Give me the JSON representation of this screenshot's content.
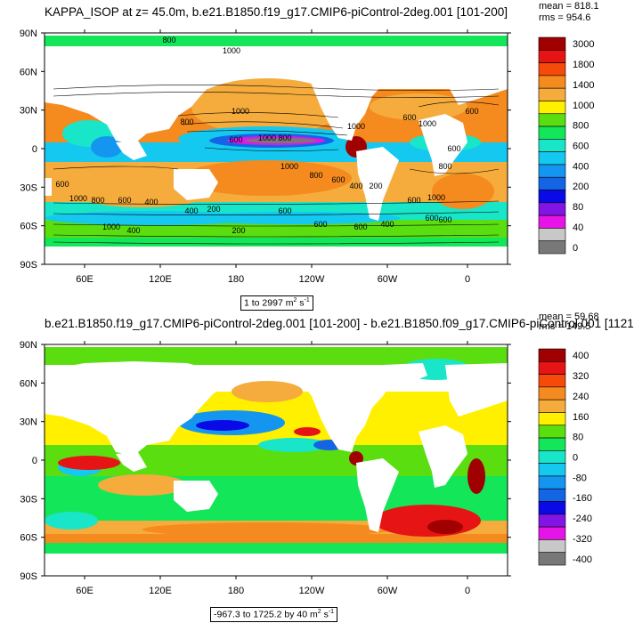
{
  "chart_data": [
    {
      "type": "heatmap",
      "title": "KAPPA_ISOP at z=  45.0m, b.e21.B1850.f19_g17.CMIP6-piControl-2deg.001 [101-200]",
      "stats": {
        "mean": "mean = 818.1",
        "rms": "rms = 954.6"
      },
      "range_label": "1 to 2997 m",
      "range_units": {
        "m_sup": "2",
        "s": " s",
        "s_sup": "-1"
      },
      "x_ticks": [
        "60E",
        "120E",
        "180",
        "120W",
        "60W",
        "0"
      ],
      "y_ticks": [
        "90N",
        "60N",
        "30N",
        "0",
        "30S",
        "60S",
        "90S"
      ],
      "colorbar": {
        "labels": [
          "3000",
          "1800",
          "1400",
          "1000",
          "800",
          "600",
          "400",
          "200",
          "80",
          "40",
          "0"
        ],
        "colors": [
          "#a00000",
          "#e61414",
          "#f54a0a",
          "#f58a1e",
          "#f5ac3c",
          "#fff000",
          "#5ade10",
          "#14e65a",
          "#19e6c8",
          "#14c8f0",
          "#1496f0",
          "#1464e6",
          "#0a0ae6",
          "#8214e6",
          "#e614e6",
          "#c8c8c8",
          "#787878"
        ]
      },
      "contour_labels": [
        "800",
        "1000",
        "1000",
        "1000",
        "600",
        "1000",
        "600",
        "800",
        "600",
        "1000",
        "800",
        "1000",
        "800",
        "600",
        "400",
        "200",
        "600",
        "1000",
        "800",
        "600",
        "400",
        "400",
        "200",
        "600",
        "600",
        "600",
        "400",
        "600",
        "1000",
        "800",
        "600",
        "600",
        "600",
        "1000",
        "400",
        "200"
      ]
    },
    {
      "type": "heatmap",
      "title": "b.e21.B1850.f19_g17.CMIP6-piControl-2deg.001 [101-200] - b.e21.B1850.f09_g17.CMIP6-piControl.001 [1121",
      "stats": {
        "mean": "mean = 59.68",
        "rms": "rms = 149.5"
      },
      "range_label": "-967.3 to 1725.2 by 40 m",
      "range_units": {
        "m_sup": "2",
        "s": " s",
        "s_sup": "-1"
      },
      "x_ticks": [
        "60E",
        "120E",
        "180",
        "120W",
        "60W",
        "0"
      ],
      "y_ticks": [
        "90N",
        "60N",
        "30N",
        "0",
        "30S",
        "60S",
        "90S"
      ],
      "colorbar": {
        "labels": [
          "400",
          "320",
          "240",
          "160",
          "80",
          "0",
          "-80",
          "-160",
          "-240",
          "-320",
          "-400"
        ],
        "colors": [
          "#a00000",
          "#e61414",
          "#f54a0a",
          "#f58a1e",
          "#f5ac3c",
          "#fff000",
          "#5ade10",
          "#14e65a",
          "#19e6c8",
          "#14c8f0",
          "#1496f0",
          "#1464e6",
          "#0a0ae6",
          "#8214e6",
          "#e614e6",
          "#c8c8c8",
          "#787878"
        ]
      }
    }
  ]
}
